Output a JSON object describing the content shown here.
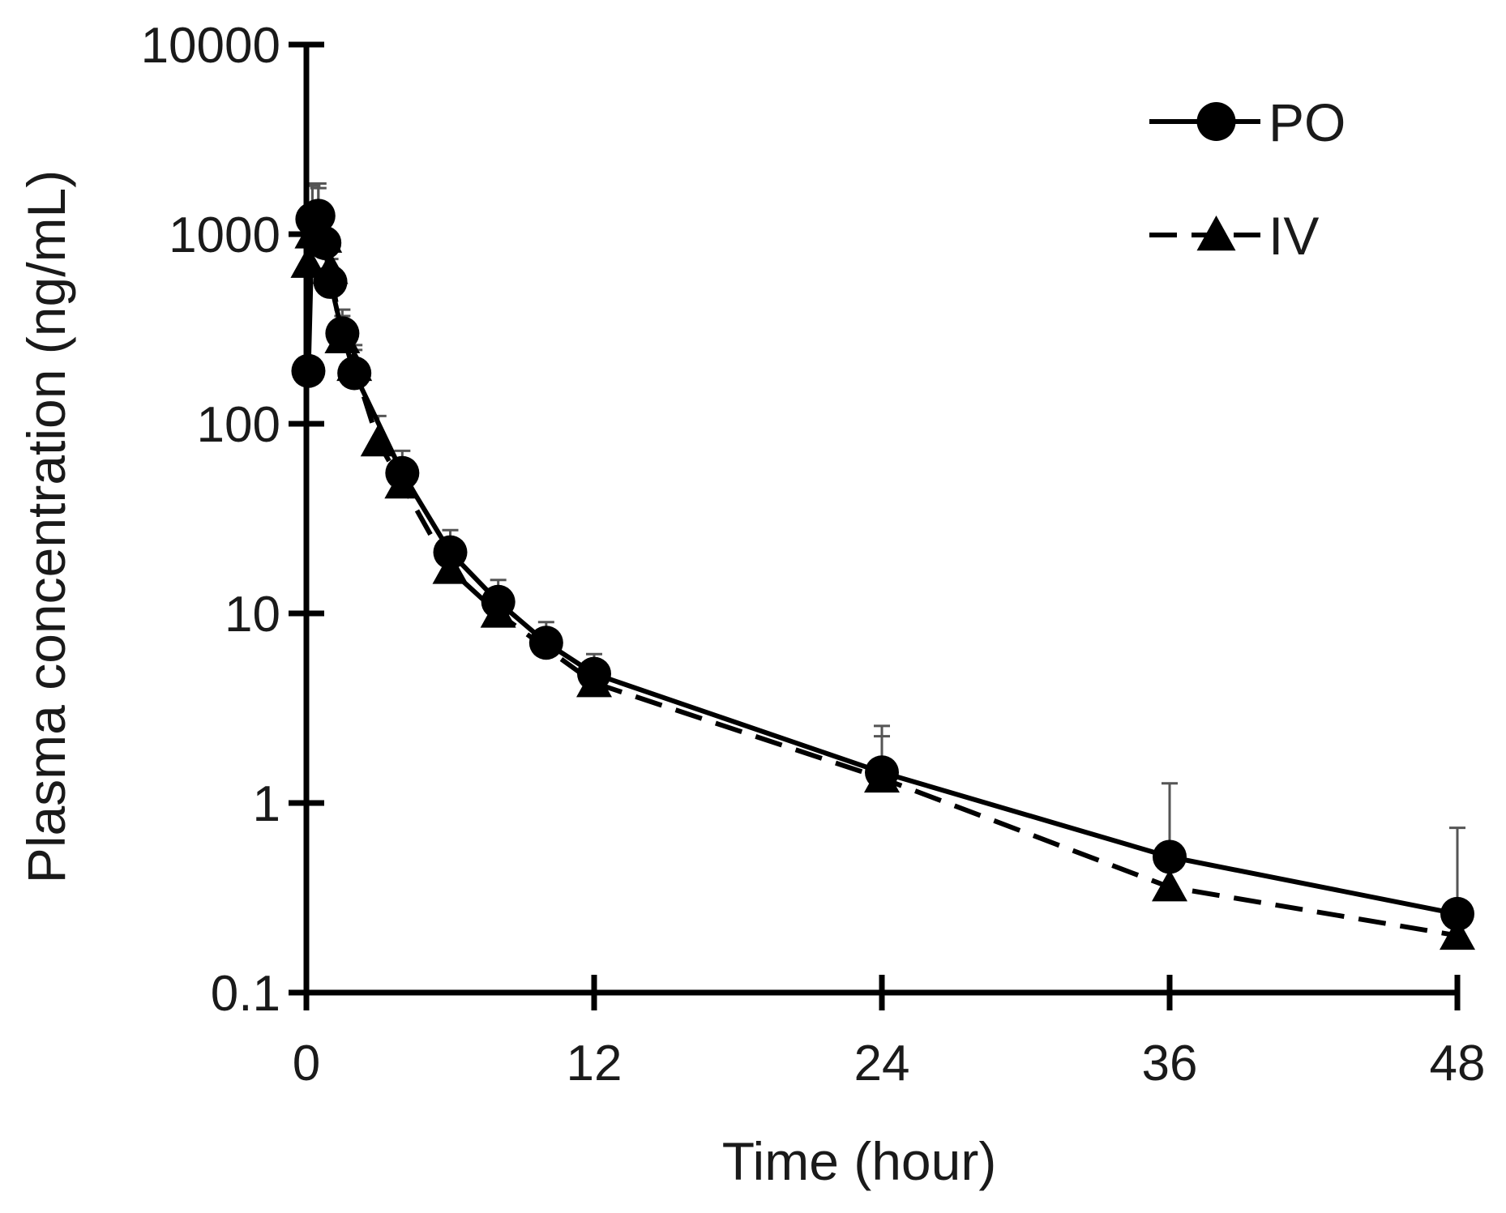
{
  "chart_data": {
    "type": "line",
    "xlabel": "Time (hour)",
    "ylabel": "Plasma concentration (ng/mL)",
    "xlim": [
      0,
      48
    ],
    "ylim": [
      0.1,
      10000
    ],
    "yscale": "log",
    "x_ticks": [
      "0",
      "12",
      "24",
      "36",
      "48"
    ],
    "y_ticks": [
      "0.1",
      "1",
      "10",
      "100",
      "1000",
      "10000"
    ],
    "grid": false,
    "legend_position": "top-right",
    "series": [
      {
        "name": "PO",
        "marker": "circle",
        "line": "solid",
        "x": [
          0.083,
          0.25,
          0.5,
          0.75,
          1,
          1.5,
          2,
          4,
          6,
          8,
          10,
          12,
          24,
          36,
          48
        ],
        "y": [
          190,
          1200,
          1250,
          900,
          560,
          300,
          185,
          55,
          21,
          11.5,
          7,
          4.8,
          1.45,
          0.52,
          0.26
        ],
        "err": [
          null,
          650,
          600,
          400,
          180,
          100,
          60,
          17,
          6.5,
          3.5,
          2,
          1.3,
          1.1,
          0.75,
          0.48
        ]
      },
      {
        "name": "IV",
        "marker": "triangle",
        "line": "dashed",
        "x": [
          0.083,
          0.25,
          0.5,
          0.75,
          1,
          1.5,
          2,
          3,
          4,
          6,
          8,
          12,
          24,
          36,
          48
        ],
        "y": [
          700,
          1000,
          1050,
          950,
          650,
          280,
          200,
          80,
          48,
          17,
          10,
          4.3,
          1.35,
          0.36,
          0.2
        ],
        "err": [
          300,
          800,
          700,
          400,
          250,
          90,
          60,
          30,
          14,
          5,
          3,
          1.2,
          0.9,
          0.25,
          null
        ]
      }
    ]
  }
}
